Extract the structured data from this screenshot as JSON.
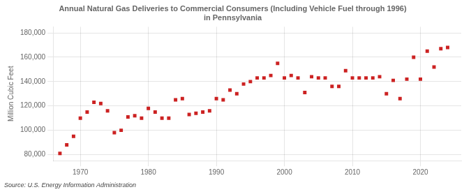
{
  "chart_data": {
    "type": "scatter",
    "title": "Annual Natural Gas Deliveries to Commercial Consumers (Including Vehicle Fuel through 1996)\nin Pennsylvania",
    "ylabel": "Million Cubic Feet",
    "annotations": [
      "Source: U.S. Energy Information Administration"
    ],
    "color": "#cc2222",
    "marker": "square",
    "grid": true,
    "xlim": [
      1966,
      2026
    ],
    "xticks": [
      1970,
      1980,
      1990,
      2000,
      2010,
      2020
    ],
    "ylim": [
      75000,
      185000
    ],
    "yticks": [
      {
        "value": 80000,
        "label": "80,000"
      },
      {
        "value": 100000,
        "label": "100,000"
      },
      {
        "value": 120000,
        "label": "120,000"
      },
      {
        "value": 140000,
        "label": "140,000"
      },
      {
        "value": 160000,
        "label": "160,000"
      },
      {
        "value": 180000,
        "label": "180,000"
      }
    ],
    "x": [
      1967,
      1968,
      1969,
      1970,
      1971,
      1972,
      1973,
      1974,
      1975,
      1976,
      1977,
      1978,
      1979,
      1980,
      1981,
      1982,
      1983,
      1984,
      1985,
      1986,
      1987,
      1988,
      1989,
      1990,
      1991,
      1992,
      1993,
      1994,
      1995,
      1996,
      1997,
      1998,
      1999,
      2000,
      2001,
      2002,
      2003,
      2004,
      2005,
      2006,
      2007,
      2008,
      2009,
      2010,
      2011,
      2012,
      2013,
      2014,
      2015,
      2016,
      2017,
      2018,
      2019,
      2020,
      2021,
      2022,
      2023,
      2024
    ],
    "values": [
      81000,
      88000,
      95000,
      110000,
      115000,
      123000,
      122000,
      116000,
      98000,
      100000,
      111000,
      112000,
      110000,
      118000,
      115000,
      110000,
      110000,
      125000,
      126000,
      113000,
      114000,
      115000,
      116000,
      126000,
      125000,
      133000,
      130000,
      138000,
      140000,
      143000,
      143000,
      145000,
      155000,
      143000,
      145000,
      143000,
      131000,
      144000,
      143000,
      143000,
      136000,
      136000,
      149000,
      143000,
      143000,
      143000,
      143000,
      144000,
      130000,
      141000,
      126000,
      142000,
      160000,
      142000,
      165000,
      152000,
      167000,
      168000
    ]
  }
}
